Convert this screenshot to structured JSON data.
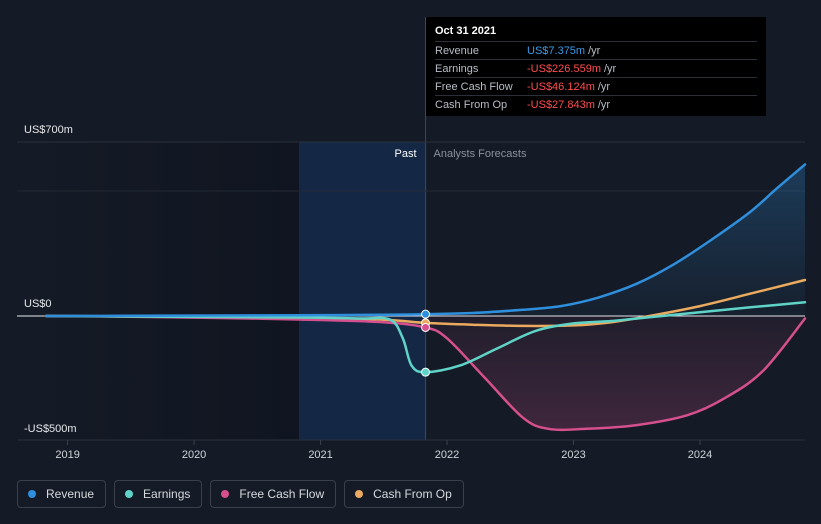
{
  "chart_data": {
    "type": "line",
    "unit": "US$m",
    "ylim": [
      -500,
      700
    ],
    "y_tick_labels": [
      {
        "value": 700,
        "label": "US$700m"
      },
      {
        "value": 0,
        "label": "US$0"
      },
      {
        "value": -500,
        "label": "-US$500m"
      }
    ],
    "x_tick_labels": [
      {
        "value": 2019,
        "label": "2019"
      },
      {
        "value": 2020,
        "label": "2020"
      },
      {
        "value": 2021,
        "label": "2021"
      },
      {
        "value": 2022,
        "label": "2022"
      },
      {
        "value": 2023,
        "label": "2023"
      },
      {
        "value": 2024,
        "label": "2024"
      }
    ],
    "xlim": [
      2018.6,
      2024.83
    ],
    "past_label": "Past",
    "forecast_label": "Analysts Forecasts",
    "cutoff_x": 2021.83,
    "highlight_start_x": 2020.83,
    "series": [
      {
        "name": "Revenue",
        "color": "#2f8fdc",
        "area": true,
        "points": [
          [
            2018.83,
            0
          ],
          [
            2019.5,
            1
          ],
          [
            2020.2,
            2
          ],
          [
            2020.83,
            3
          ],
          [
            2021.5,
            5
          ],
          [
            2021.83,
            7.375
          ],
          [
            2022.2,
            12
          ],
          [
            2022.6,
            25
          ],
          [
            2022.9,
            40
          ],
          [
            2023.2,
            75
          ],
          [
            2023.5,
            130
          ],
          [
            2023.8,
            210
          ],
          [
            2024.1,
            310
          ],
          [
            2024.4,
            420
          ],
          [
            2024.6,
            510
          ],
          [
            2024.83,
            610
          ]
        ]
      },
      {
        "name": "Earnings",
        "color": "#5fd3c7",
        "area": false,
        "points": [
          [
            2018.83,
            0
          ],
          [
            2019.5,
            -2
          ],
          [
            2020.2,
            -4
          ],
          [
            2020.83,
            -6
          ],
          [
            2021.3,
            -10
          ],
          [
            2021.55,
            -15
          ],
          [
            2021.65,
            -90
          ],
          [
            2021.72,
            -200
          ],
          [
            2021.83,
            -226.559
          ],
          [
            2022.1,
            -200
          ],
          [
            2022.4,
            -130
          ],
          [
            2022.7,
            -60
          ],
          [
            2023.0,
            -30
          ],
          [
            2023.3,
            -20
          ],
          [
            2023.6,
            -5
          ],
          [
            2024.0,
            15
          ],
          [
            2024.4,
            35
          ],
          [
            2024.83,
            55
          ]
        ]
      },
      {
        "name": "Free Cash Flow",
        "color": "#d6508e",
        "area": true,
        "points": [
          [
            2018.83,
            0
          ],
          [
            2019.5,
            -3
          ],
          [
            2020.2,
            -8
          ],
          [
            2020.83,
            -14
          ],
          [
            2021.5,
            -25
          ],
          [
            2021.83,
            -46.124
          ],
          [
            2022.0,
            -90
          ],
          [
            2022.3,
            -250
          ],
          [
            2022.6,
            -410
          ],
          [
            2022.8,
            -455
          ],
          [
            2023.1,
            -455
          ],
          [
            2023.5,
            -440
          ],
          [
            2023.9,
            -400
          ],
          [
            2024.2,
            -330
          ],
          [
            2024.5,
            -220
          ],
          [
            2024.83,
            -10
          ]
        ]
      },
      {
        "name": "Cash From Op",
        "color": "#eaaa5f",
        "area": false,
        "points": [
          [
            2018.83,
            0
          ],
          [
            2019.5,
            -2
          ],
          [
            2020.2,
            -5
          ],
          [
            2020.83,
            -8
          ],
          [
            2021.5,
            -15
          ],
          [
            2021.83,
            -27.843
          ],
          [
            2022.2,
            -35
          ],
          [
            2022.6,
            -40
          ],
          [
            2023.0,
            -38
          ],
          [
            2023.3,
            -25
          ],
          [
            2023.6,
            0
          ],
          [
            2024.0,
            40
          ],
          [
            2024.4,
            90
          ],
          [
            2024.83,
            145
          ]
        ]
      }
    ]
  },
  "tooltip": {
    "date": "Oct 31 2021",
    "rows": [
      {
        "label": "Revenue",
        "value": "US$7.375m",
        "unit": "/yr",
        "color": "#3a9be8"
      },
      {
        "label": "Earnings",
        "value": "-US$226.559m",
        "unit": "/yr",
        "color": "#ff4d4d"
      },
      {
        "label": "Free Cash Flow",
        "value": "-US$46.124m",
        "unit": "/yr",
        "color": "#ff4d4d"
      },
      {
        "label": "Cash From Op",
        "value": "-US$27.843m",
        "unit": "/yr",
        "color": "#ff4d4d"
      }
    ]
  },
  "legend": [
    {
      "label": "Revenue",
      "color": "#2f8fdc"
    },
    {
      "label": "Earnings",
      "color": "#5fd3c7"
    },
    {
      "label": "Free Cash Flow",
      "color": "#d6508e"
    },
    {
      "label": "Cash From Op",
      "color": "#eaaa5f"
    }
  ]
}
